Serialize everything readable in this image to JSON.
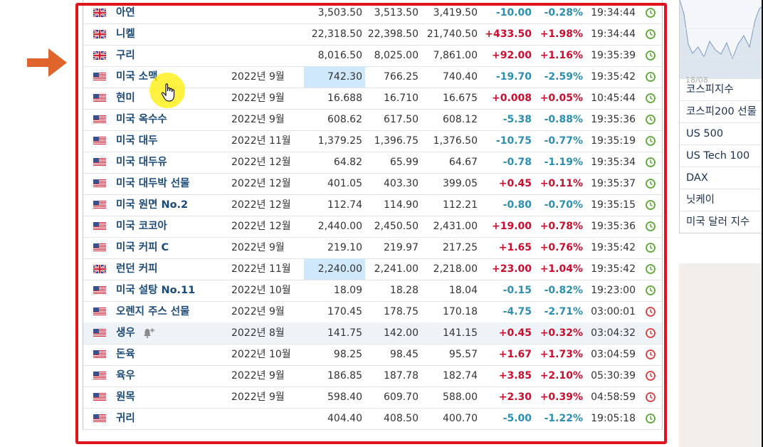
{
  "commodities": [
    {
      "flag": "uk",
      "name": "아연",
      "month": "",
      "last": "3,503.50",
      "high": "3,513.50",
      "low": "3,419.50",
      "change": "-10.00",
      "pct": "-0.28%",
      "time": "19:34:44",
      "dir": "down",
      "clock": "green"
    },
    {
      "flag": "uk",
      "name": "니켈",
      "month": "",
      "last": "22,318.50",
      "high": "22,398.50",
      "low": "21,740.50",
      "change": "+433.50",
      "pct": "+1.98%",
      "time": "19:34:44",
      "dir": "up",
      "clock": "green"
    },
    {
      "flag": "uk",
      "name": "구리",
      "month": "",
      "last": "8,016.50",
      "high": "8,025.00",
      "low": "7,861.00",
      "change": "+92.00",
      "pct": "+1.16%",
      "time": "19:35:39",
      "dir": "up",
      "clock": "green"
    },
    {
      "flag": "us",
      "name": "미국 소맥",
      "month": "2022년 9월",
      "last": "742.30",
      "high": "766.25",
      "low": "740.40",
      "change": "-19.70",
      "pct": "-2.59%",
      "time": "19:35:42",
      "dir": "down",
      "clock": "green",
      "last_highlight": true
    },
    {
      "flag": "us",
      "name": "현미",
      "month": "2022년 9월",
      "last": "16.688",
      "high": "16.710",
      "low": "16.675",
      "change": "+0.008",
      "pct": "+0.05%",
      "time": "10:45:44",
      "dir": "up",
      "clock": "green"
    },
    {
      "flag": "us",
      "name": "미국 옥수수",
      "month": "2022년 9월",
      "last": "608.62",
      "high": "617.50",
      "low": "608.12",
      "change": "-5.38",
      "pct": "-0.88%",
      "time": "19:35:36",
      "dir": "down",
      "clock": "green"
    },
    {
      "flag": "us",
      "name": "미국 대두",
      "month": "2022년 11월",
      "last": "1,379.25",
      "high": "1,396.75",
      "low": "1,376.50",
      "change": "-10.75",
      "pct": "-0.77%",
      "time": "19:35:19",
      "dir": "down",
      "clock": "green"
    },
    {
      "flag": "us",
      "name": "미국 대두유",
      "month": "2022년 12월",
      "last": "64.82",
      "high": "65.99",
      "low": "64.67",
      "change": "-0.78",
      "pct": "-1.19%",
      "time": "19:35:34",
      "dir": "down",
      "clock": "green"
    },
    {
      "flag": "us",
      "name": "미국 대두박 선물",
      "month": "2022년 12월",
      "last": "401.05",
      "high": "403.30",
      "low": "399.05",
      "change": "+0.45",
      "pct": "+0.11%",
      "time": "19:35:37",
      "dir": "up",
      "clock": "green"
    },
    {
      "flag": "us",
      "name": "미국 원면 No.2",
      "month": "2022년 12월",
      "last": "112.74",
      "high": "114.90",
      "low": "112.21",
      "change": "-0.80",
      "pct": "-0.70%",
      "time": "19:35:15",
      "dir": "down",
      "clock": "green"
    },
    {
      "flag": "us",
      "name": "미국 코코아",
      "month": "2022년 12월",
      "last": "2,440.00",
      "high": "2,450.50",
      "low": "2,431.00",
      "change": "+19.00",
      "pct": "+0.78%",
      "time": "19:35:36",
      "dir": "up",
      "clock": "green"
    },
    {
      "flag": "us",
      "name": "미국 커피 C",
      "month": "2022년 9월",
      "last": "219.10",
      "high": "219.97",
      "low": "217.25",
      "change": "+1.65",
      "pct": "+0.76%",
      "time": "19:35:42",
      "dir": "up",
      "clock": "green"
    },
    {
      "flag": "uk",
      "name": "런던 커피",
      "month": "2022년 11월",
      "last": "2,240.00",
      "high": "2,241.00",
      "low": "2,218.00",
      "change": "+23.00",
      "pct": "+1.04%",
      "time": "19:35:42",
      "dir": "up",
      "clock": "green",
      "last_highlight": true
    },
    {
      "flag": "us",
      "name": "미국 설탕 No.11",
      "month": "2022년 10월",
      "last": "18.09",
      "high": "18.28",
      "low": "18.04",
      "change": "-0.15",
      "pct": "-0.82%",
      "time": "19:23:00",
      "dir": "down",
      "clock": "green"
    },
    {
      "flag": "us",
      "name": "오렌지 주스 선물",
      "month": "2022년 9월",
      "last": "170.45",
      "high": "178.75",
      "low": "170.18",
      "change": "-4.75",
      "pct": "-2.71%",
      "time": "03:00:01",
      "dir": "down",
      "clock": "red"
    },
    {
      "flag": "us",
      "name": "생우",
      "month": "2022년 8월",
      "last": "141.75",
      "high": "142.00",
      "low": "141.15",
      "change": "+0.45",
      "pct": "+0.32%",
      "time": "03:04:32",
      "dir": "up",
      "clock": "red",
      "row_highlight": true,
      "bell": true
    },
    {
      "flag": "us",
      "name": "돈육",
      "month": "2022년 10월",
      "last": "98.25",
      "high": "98.45",
      "low": "95.57",
      "change": "+1.67",
      "pct": "+1.73%",
      "time": "03:04:59",
      "dir": "up",
      "clock": "red"
    },
    {
      "flag": "us",
      "name": "육우",
      "month": "2022년 9월",
      "last": "186.85",
      "high": "187.78",
      "low": "182.74",
      "change": "+3.85",
      "pct": "+2.10%",
      "time": "05:30:39",
      "dir": "up",
      "clock": "red"
    },
    {
      "flag": "us",
      "name": "원목",
      "month": "2022년 9월",
      "last": "598.40",
      "high": "609.70",
      "low": "588.00",
      "change": "+2.30",
      "pct": "+0.39%",
      "time": "04:58:59",
      "dir": "up",
      "clock": "red"
    },
    {
      "flag": "us",
      "name": "귀리",
      "month": "",
      "last": "404.40",
      "high": "408.50",
      "low": "400.70",
      "change": "-5.00",
      "pct": "-1.22%",
      "time": "19:05:18",
      "dir": "down",
      "clock": "green"
    }
  ],
  "sidebar": {
    "chart_date": "18/08",
    "items": [
      "코스피지수",
      "코스피200 선물",
      "US 500",
      "US Tech 100",
      "DAX",
      "닛케이",
      "미국 달러 지수"
    ]
  },
  "colors": {
    "up": "#c8102e",
    "down": "#2a8fb3",
    "frame": "#e0141e",
    "arrow": "#e0652d"
  }
}
